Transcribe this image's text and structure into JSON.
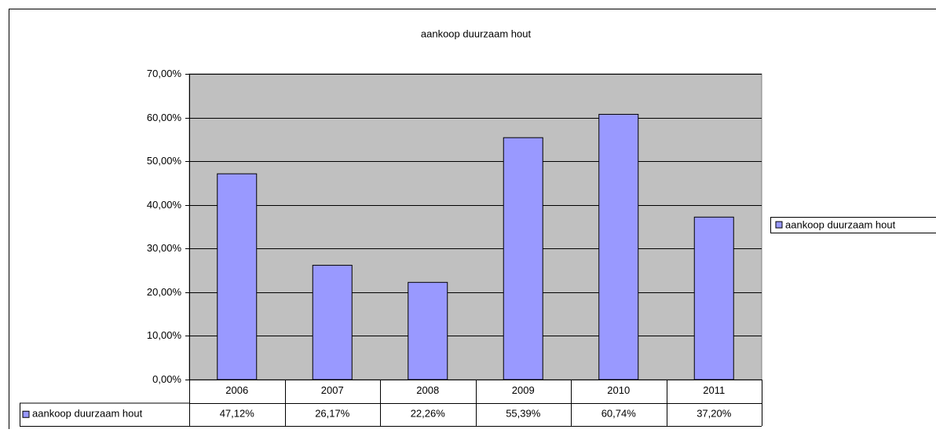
{
  "chart_data": {
    "type": "bar",
    "title": "aankoop duurzaam hout",
    "categories": [
      "2006",
      "2007",
      "2008",
      "2009",
      "2010",
      "2011"
    ],
    "series": [
      {
        "name": "aankoop duurzaam hout",
        "color": "#9999ff",
        "values": [
          47.12,
          26.17,
          22.26,
          55.39,
          60.74,
          37.2
        ],
        "value_labels": [
          "47,12%",
          "26,17%",
          "22,26%",
          "55,39%",
          "60,74%",
          "37,20%"
        ]
      }
    ],
    "ylim": [
      0,
      70
    ],
    "yticks": [
      {
        "value": 0,
        "label": "0,00%"
      },
      {
        "value": 10,
        "label": "10,00%"
      },
      {
        "value": 20,
        "label": "20,00%"
      },
      {
        "value": 30,
        "label": "30,00%"
      },
      {
        "value": 40,
        "label": "40,00%"
      },
      {
        "value": 50,
        "label": "50,00%"
      },
      {
        "value": 60,
        "label": "60,00%"
      },
      {
        "value": 70,
        "label": "70,00%"
      }
    ],
    "grid": true,
    "plot_background": "#c0c0c0",
    "legend": "right",
    "data_table": true
  }
}
